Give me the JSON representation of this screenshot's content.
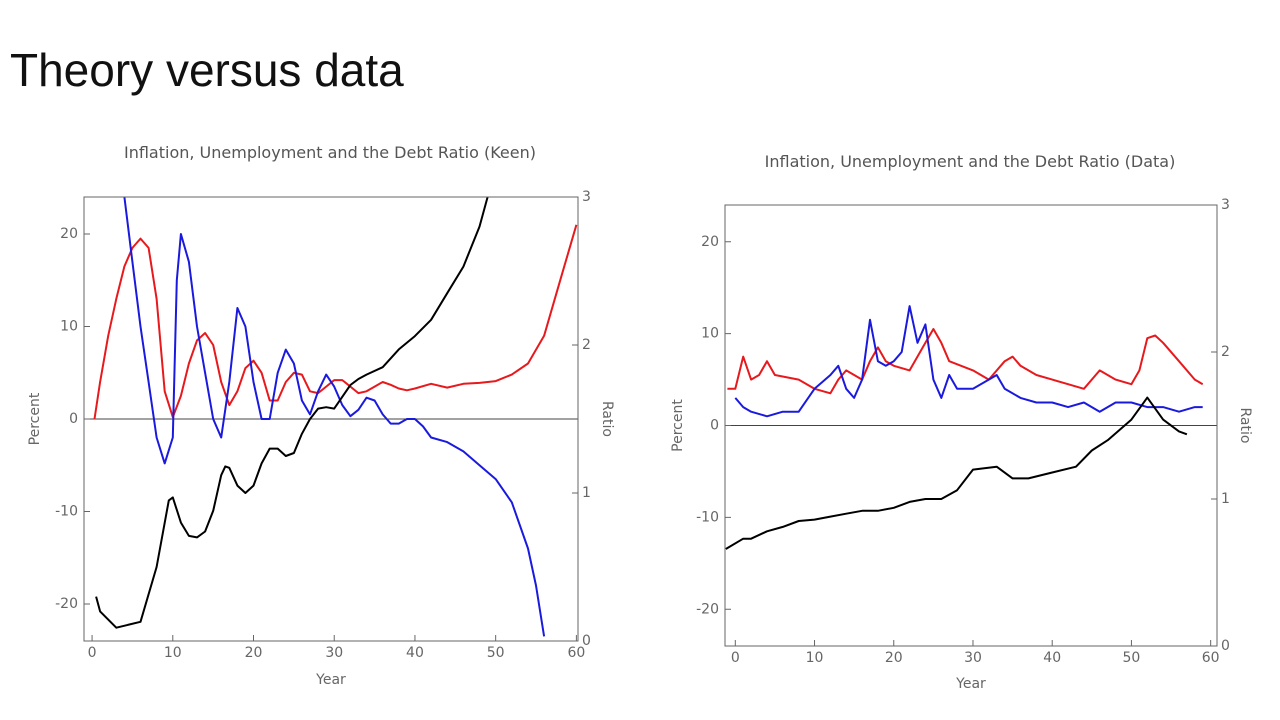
{
  "slide_title": "Theory versus data",
  "chart_data": [
    {
      "type": "line",
      "title": "Inflation, Unemployment and the Debt Ratio (Keen)",
      "xlabel": "Year",
      "ylabel": "Percent",
      "y2label": "Ratio",
      "xlim": [
        -1,
        60.2
      ],
      "xticks": [
        0,
        10,
        20,
        30,
        40,
        50,
        60
      ],
      "ylim": [
        -24,
        24
      ],
      "yticks": [
        -20,
        -10,
        0,
        10,
        20
      ],
      "y2lim": [
        0,
        3
      ],
      "y2ticks": [
        0,
        1,
        2,
        3
      ],
      "series": [
        {
          "color": "#e8191c",
          "x": [
            0.3,
            1,
            2,
            3,
            4,
            5,
            6,
            7,
            8,
            9,
            10,
            11,
            12,
            13,
            14,
            15,
            16,
            17,
            18,
            19,
            20,
            21,
            22,
            23,
            24,
            25,
            26,
            27,
            28,
            29,
            30,
            31,
            32,
            33,
            34,
            35,
            36,
            37,
            38,
            39,
            40,
            42,
            44,
            46,
            48,
            50,
            52,
            54,
            56,
            58,
            60
          ],
          "values": [
            0,
            4,
            9,
            13,
            16.5,
            18.5,
            19.5,
            18.5,
            13,
            3,
            0.2,
            2.5,
            6,
            8.5,
            9.3,
            8,
            4,
            1.5,
            3,
            5.5,
            6.3,
            5,
            2,
            2,
            4,
            5,
            4.8,
            3,
            2.8,
            3.5,
            4.2,
            4.2,
            3.5,
            2.8,
            3,
            3.5,
            4,
            3.7,
            3.3,
            3.1,
            3.3,
            3.8,
            3.4,
            3.8,
            3.9,
            4.1,
            4.8,
            6,
            9,
            15,
            21
          ]
        },
        {
          "color": "#1a1adf",
          "x": [
            4,
            5,
            6,
            7,
            8,
            9,
            10,
            10.5,
            11,
            12,
            13,
            14,
            15,
            16,
            17,
            18,
            19,
            20,
            21,
            22,
            23,
            24,
            25,
            26,
            27,
            28,
            29,
            30,
            31,
            32,
            33,
            34,
            35,
            36,
            37,
            38,
            39,
            40,
            41,
            42,
            44,
            46,
            48,
            50,
            52,
            54,
            55,
            56
          ],
          "values": [
            24,
            17,
            10,
            4,
            -2,
            -4.8,
            -2,
            15,
            20,
            17,
            10,
            5,
            0,
            -2,
            4,
            12,
            10,
            4,
            0,
            0,
            5,
            7.5,
            6,
            2,
            0.5,
            3,
            4.8,
            3.5,
            1.5,
            0.3,
            1,
            2.3,
            2,
            0.5,
            -0.5,
            -0.5,
            0,
            0,
            -0.8,
            -2,
            -2.5,
            -3.5,
            -5,
            -6.5,
            -9,
            -14,
            -18,
            -23.5
          ]
        },
        {
          "color": "#000000",
          "axis": "y2",
          "x": [
            0.5,
            1,
            3,
            6,
            8,
            9.5,
            10,
            11,
            12,
            13,
            14,
            15,
            16,
            16.5,
            17,
            18,
            19,
            20,
            21,
            22,
            23,
            24,
            25,
            26,
            27,
            28,
            29,
            30,
            31,
            32,
            33,
            34,
            36,
            38,
            40,
            42,
            44,
            46,
            48,
            49
          ],
          "values": [
            0.3,
            0.2,
            0.09,
            0.13,
            0.5,
            0.95,
            0.97,
            0.8,
            0.71,
            0.7,
            0.74,
            0.88,
            1.12,
            1.18,
            1.17,
            1.05,
            1.0,
            1.05,
            1.2,
            1.3,
            1.3,
            1.25,
            1.27,
            1.4,
            1.5,
            1.57,
            1.58,
            1.57,
            1.65,
            1.73,
            1.77,
            1.8,
            1.85,
            1.97,
            2.06,
            2.17,
            2.35,
            2.53,
            2.8,
            3.0
          ]
        }
      ]
    },
    {
      "type": "line",
      "title": "Inflation, Unemployment and the Debt Ratio (Data)",
      "xlabel": "Year",
      "ylabel": "Percent",
      "y2label": "Ratio",
      "xlim": [
        -1.3,
        60.8
      ],
      "xticks": [
        0,
        10,
        20,
        30,
        40,
        50,
        60
      ],
      "ylim": [
        -24,
        24
      ],
      "yticks": [
        -20,
        -10,
        0,
        10,
        20
      ],
      "y2lim": [
        0,
        3
      ],
      "y2ticks": [
        0,
        1,
        2,
        3
      ],
      "series": [
        {
          "color": "#e8191c",
          "x": [
            -1,
            0,
            1,
            2,
            3,
            4,
            5,
            8,
            10,
            12,
            13,
            14,
            16,
            17,
            18,
            19,
            20,
            22,
            24,
            25,
            26,
            27,
            30,
            32,
            34,
            35,
            36,
            38,
            40,
            42,
            44,
            46,
            48,
            50,
            51,
            52,
            53,
            54,
            56,
            58,
            59
          ],
          "values": [
            4,
            4,
            7.5,
            5,
            5.5,
            7,
            5.5,
            5,
            4,
            3.5,
            5,
            6,
            5,
            7,
            8.5,
            7,
            6.5,
            6,
            9,
            10.5,
            9,
            7,
            6,
            5,
            7,
            7.5,
            6.5,
            5.5,
            5,
            4.5,
            4,
            6,
            5,
            4.5,
            6,
            9.5,
            9.8,
            9,
            7,
            5,
            4.5
          ]
        },
        {
          "color": "#1a1adf",
          "x": [
            0,
            1,
            2,
            4,
            6,
            8,
            10,
            12,
            13,
            14,
            15,
            16,
            17,
            18,
            19,
            20,
            21,
            22,
            23,
            24,
            25,
            26,
            27,
            28,
            30,
            32,
            33,
            34,
            36,
            38,
            40,
            42,
            44,
            46,
            48,
            50,
            52,
            54,
            56,
            58,
            59
          ],
          "values": [
            3,
            2,
            1.5,
            1,
            1.5,
            1.5,
            4,
            5.5,
            6.5,
            4,
            3,
            5,
            11.5,
            7,
            6.5,
            7,
            8,
            13,
            9,
            11,
            5,
            3,
            5.5,
            4,
            4,
            5,
            5.5,
            4,
            3,
            2.5,
            2.5,
            2,
            2.5,
            1.5,
            2.5,
            2.5,
            2,
            2,
            1.5,
            2,
            2
          ]
        },
        {
          "color": "#000000",
          "axis": "y2",
          "x": [
            -1.2,
            1,
            2,
            4,
            6,
            8,
            10,
            12,
            14,
            16,
            18,
            20,
            22,
            24,
            26,
            28,
            30,
            33,
            35,
            37,
            40,
            43,
            45,
            47,
            50,
            52,
            54,
            56,
            57
          ],
          "values": [
            0.66,
            0.73,
            0.73,
            0.78,
            0.81,
            0.85,
            0.86,
            0.88,
            0.9,
            0.92,
            0.92,
            0.94,
            0.98,
            1.0,
            1.0,
            1.06,
            1.2,
            1.22,
            1.14,
            1.14,
            1.18,
            1.22,
            1.33,
            1.4,
            1.54,
            1.69,
            1.54,
            1.46,
            1.44
          ]
        }
      ]
    }
  ]
}
